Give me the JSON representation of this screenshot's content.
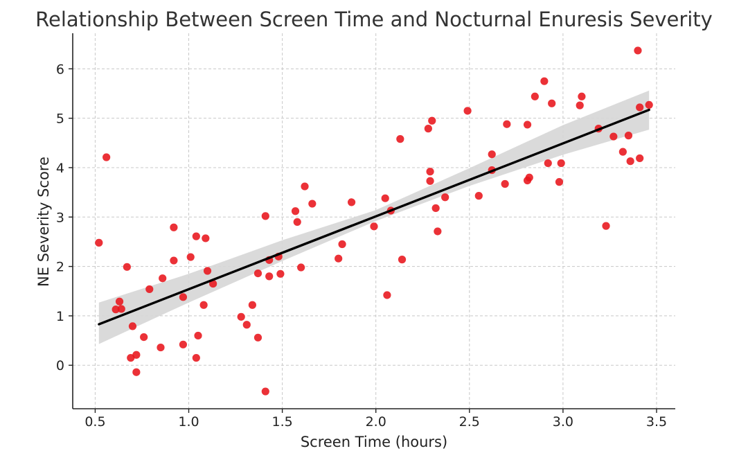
{
  "chart_data": {
    "type": "scatter",
    "title": "Relationship Between Screen Time and Nocturnal Enuresis Severity",
    "xlabel": "Screen Time (hours)",
    "ylabel": "NE Severity Score",
    "xlim": [
      0.38,
      3.6
    ],
    "ylim": [
      -0.88,
      6.72
    ],
    "xticks": [
      0.5,
      1.0,
      1.5,
      2.0,
      2.5,
      3.0,
      3.5
    ],
    "xtick_labels": [
      "0.5",
      "1.0",
      "1.5",
      "2.0",
      "2.5",
      "3.0",
      "3.5"
    ],
    "yticks": [
      0,
      1,
      2,
      3,
      4,
      5,
      6
    ],
    "ytick_labels": [
      "0",
      "1",
      "2",
      "3",
      "4",
      "5",
      "6"
    ],
    "grid": true,
    "colors": {
      "points": "#e8151b",
      "fit_line": "#000000",
      "confidence_band": "#d6d6d6",
      "grid": "#c8c8c8",
      "title": "#333333"
    },
    "points": [
      [
        0.52,
        2.48
      ],
      [
        0.56,
        4.21
      ],
      [
        0.61,
        1.13
      ],
      [
        0.63,
        1.29
      ],
      [
        0.64,
        1.14
      ],
      [
        0.67,
        1.99
      ],
      [
        0.69,
        0.15
      ],
      [
        0.7,
        0.79
      ],
      [
        0.72,
        0.21
      ],
      [
        0.72,
        -0.14
      ],
      [
        0.76,
        0.57
      ],
      [
        0.79,
        1.54
      ],
      [
        0.85,
        0.36
      ],
      [
        0.86,
        1.76
      ],
      [
        0.92,
        2.79
      ],
      [
        0.92,
        2.12
      ],
      [
        0.97,
        0.42
      ],
      [
        0.97,
        1.38
      ],
      [
        1.01,
        2.19
      ],
      [
        1.04,
        2.61
      ],
      [
        1.04,
        0.15
      ],
      [
        1.05,
        0.6
      ],
      [
        1.08,
        1.22
      ],
      [
        1.09,
        2.57
      ],
      [
        1.1,
        1.91
      ],
      [
        1.13,
        1.65
      ],
      [
        1.28,
        0.98
      ],
      [
        1.31,
        0.82
      ],
      [
        1.34,
        1.22
      ],
      [
        1.37,
        1.86
      ],
      [
        1.37,
        0.56
      ],
      [
        1.41,
        3.02
      ],
      [
        1.41,
        -0.53
      ],
      [
        1.43,
        1.8
      ],
      [
        1.43,
        2.13
      ],
      [
        1.48,
        2.2
      ],
      [
        1.49,
        1.85
      ],
      [
        1.57,
        3.12
      ],
      [
        1.58,
        2.9
      ],
      [
        1.6,
        1.98
      ],
      [
        1.62,
        3.62
      ],
      [
        1.66,
        3.27
      ],
      [
        1.8,
        2.16
      ],
      [
        1.82,
        2.45
      ],
      [
        1.87,
        3.3
      ],
      [
        1.99,
        2.81
      ],
      [
        2.05,
        3.38
      ],
      [
        2.06,
        1.42
      ],
      [
        2.08,
        3.13
      ],
      [
        2.13,
        4.58
      ],
      [
        2.14,
        2.14
      ],
      [
        2.28,
        4.79
      ],
      [
        2.29,
        3.92
      ],
      [
        2.29,
        3.73
      ],
      [
        2.3,
        4.95
      ],
      [
        2.32,
        3.18
      ],
      [
        2.33,
        2.71
      ],
      [
        2.37,
        3.4
      ],
      [
        2.49,
        5.15
      ],
      [
        2.55,
        3.43
      ],
      [
        2.62,
        4.27
      ],
      [
        2.62,
        3.95
      ],
      [
        2.69,
        3.67
      ],
      [
        2.7,
        4.88
      ],
      [
        2.81,
        4.87
      ],
      [
        2.81,
        3.74
      ],
      [
        2.82,
        3.8
      ],
      [
        2.85,
        5.44
      ],
      [
        2.9,
        5.75
      ],
      [
        2.92,
        4.09
      ],
      [
        2.94,
        5.3
      ],
      [
        2.98,
        3.71
      ],
      [
        2.99,
        4.09
      ],
      [
        3.09,
        5.26
      ],
      [
        3.1,
        5.44
      ],
      [
        3.19,
        4.79
      ],
      [
        3.23,
        2.82
      ],
      [
        3.27,
        4.63
      ],
      [
        3.32,
        4.32
      ],
      [
        3.35,
        4.65
      ],
      [
        3.36,
        4.13
      ],
      [
        3.4,
        6.37
      ],
      [
        3.41,
        4.19
      ],
      [
        3.41,
        5.22
      ],
      [
        3.46,
        5.27
      ]
    ],
    "fit_line": {
      "x": [
        0.52,
        3.46
      ],
      "y": [
        0.83,
        5.17
      ]
    },
    "confidence_band": {
      "x": [
        0.52,
        1.0,
        1.5,
        2.0,
        2.5,
        3.0,
        3.46
      ],
      "lower": [
        0.43,
        1.27,
        2.11,
        2.92,
        3.63,
        4.26,
        4.77
      ],
      "upper": [
        1.27,
        1.85,
        2.53,
        3.14,
        3.99,
        4.86,
        5.56
      ]
    }
  }
}
